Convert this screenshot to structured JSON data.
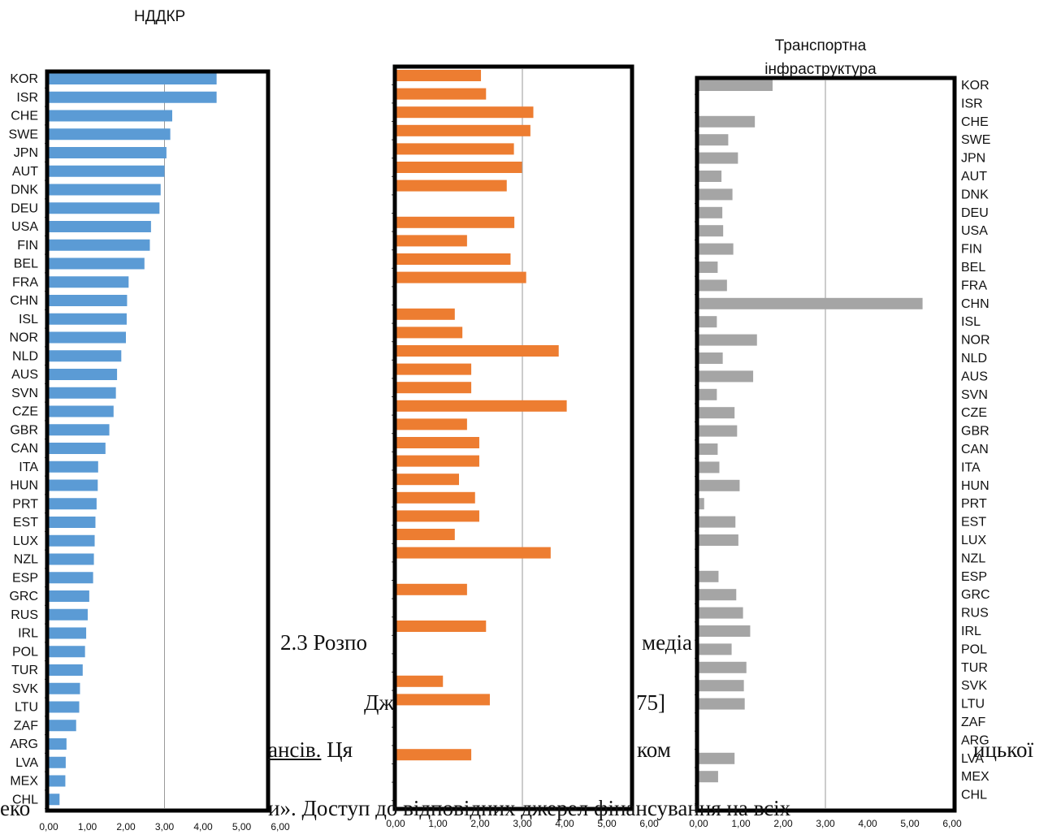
{
  "doc_text": {
    "caption_line": "2.3 Розпо",
    "caption_line_b": "медіа",
    "source_line_a": "Дж",
    "source_line_b": "75]",
    "para_line_a": "ансів.",
    "para_line_b": " Ця",
    "para_line_c": "ком",
    "para_line_d": "ицької",
    "para_line_e": "еко",
    "para_line_f": "и».  Доступ  до  відповідних  джерел  фінансування  на  всіх"
  },
  "chart_data": [
    {
      "type": "bar",
      "orientation": "horizontal",
      "title": "НДДКР",
      "color": "#5b9bd5",
      "categories": [
        "KOR",
        "ISR",
        "CHE",
        "SWE",
        "JPN",
        "AUT",
        "DNK",
        "DEU",
        "USA",
        "FIN",
        "BEL",
        "FRA",
        "CHN",
        "ISL",
        "NOR",
        "NLD",
        "AUS",
        "SVN",
        "CZE",
        "GBR",
        "CAN",
        "ITA",
        "HUN",
        "PRT",
        "EST",
        "LUX",
        "NZL",
        "ESP",
        "GRC",
        "RUS",
        "IRL",
        "POL",
        "TUR",
        "SVK",
        "LTU",
        "ZAF",
        "ARG",
        "LVA",
        "MEX",
        "CHL"
      ],
      "values": [
        4.35,
        4.35,
        3.2,
        3.15,
        3.05,
        3.0,
        2.9,
        2.87,
        2.65,
        2.62,
        2.48,
        2.07,
        2.03,
        2.02,
        2.0,
        1.88,
        1.77,
        1.74,
        1.68,
        1.57,
        1.47,
        1.28,
        1.27,
        1.24,
        1.21,
        1.19,
        1.17,
        1.15,
        1.05,
        1.01,
        0.97,
        0.94,
        0.88,
        0.81,
        0.79,
        0.71,
        0.46,
        0.44,
        0.43,
        0.28
      ],
      "xlim": [
        0,
        6
      ],
      "ticks": [
        "0,00",
        "1,00",
        "2,00",
        "3,00",
        "4,00",
        "5,00",
        "6,00"
      ],
      "gridline_at": 3.0
    },
    {
      "type": "bar",
      "orientation": "horizontal",
      "title": "",
      "color": "#ed7d31",
      "categories": [
        "KOR",
        "ISR",
        "CHE",
        "SWE",
        "JPN",
        "AUT",
        "DNK",
        "DEU",
        "USA",
        "FIN",
        "BEL",
        "FRA",
        "CHN",
        "ISL",
        "NOR",
        "NLD",
        "AUS",
        "SVN",
        "CZE",
        "GBR",
        "CAN",
        "ITA",
        "HUN",
        "PRT",
        "EST",
        "LUX",
        "NZL",
        "ESP",
        "GRC",
        "RUS",
        "IRL",
        "POL",
        "TUR",
        "SVK",
        "LTU",
        "ZAF",
        "ARG",
        "LVA",
        "MEX",
        "CHL"
      ],
      "values": [
        2.02,
        2.14,
        3.26,
        3.19,
        2.8,
        2.99,
        2.63,
        null,
        2.81,
        1.69,
        2.72,
        3.09,
        null,
        1.4,
        1.58,
        3.86,
        1.79,
        1.79,
        4.05,
        1.69,
        1.98,
        1.98,
        1.5,
        1.88,
        1.98,
        1.4,
        3.67,
        null,
        1.69,
        null,
        2.14,
        null,
        null,
        1.12,
        2.23,
        null,
        null,
        1.79,
        null,
        null
      ],
      "xlim": [
        0,
        6
      ],
      "ticks": [
        "0,00",
        "1,00",
        "2,00",
        "3,00",
        "4,00",
        "5,00",
        "6,00"
      ],
      "gridline_at": 3.0
    },
    {
      "type": "bar",
      "orientation": "horizontal",
      "title": "Транспортна інфраструктура",
      "color": "#a5a5a5",
      "categories": [
        "KOR",
        "ISR",
        "CHE",
        "SWE",
        "JPN",
        "AUT",
        "DNK",
        "DEU",
        "USA",
        "FIN",
        "BEL",
        "FRA",
        "CHN",
        "ISL",
        "NOR",
        "NLD",
        "AUS",
        "SVN",
        "CZE",
        "GBR",
        "CAN",
        "ITA",
        "HUN",
        "PRT",
        "EST",
        "LUX",
        "NZL",
        "ESP",
        "GRC",
        "RUS",
        "IRL",
        "POL",
        "TUR",
        "SVK",
        "LTU",
        "ZAF",
        "ARG",
        "LVA",
        "MEX",
        "CHL"
      ],
      "values": [
        1.75,
        null,
        1.33,
        0.7,
        0.93,
        0.54,
        0.8,
        0.56,
        0.58,
        0.82,
        0.45,
        0.67,
        5.3,
        0.43,
        1.38,
        0.57,
        1.29,
        0.43,
        0.85,
        0.91,
        0.45,
        0.49,
        0.97,
        0.13,
        0.87,
        0.94,
        null,
        0.47,
        0.89,
        1.05,
        1.22,
        0.78,
        1.13,
        1.07,
        1.09,
        null,
        null,
        0.85,
        0.46,
        null
      ],
      "xlim": [
        0,
        6
      ],
      "ticks": [
        "0,00",
        "1,00",
        "2,00",
        "3,00",
        "4,00",
        "5,00",
        "6,00"
      ],
      "gridline_at": 3.0
    }
  ]
}
